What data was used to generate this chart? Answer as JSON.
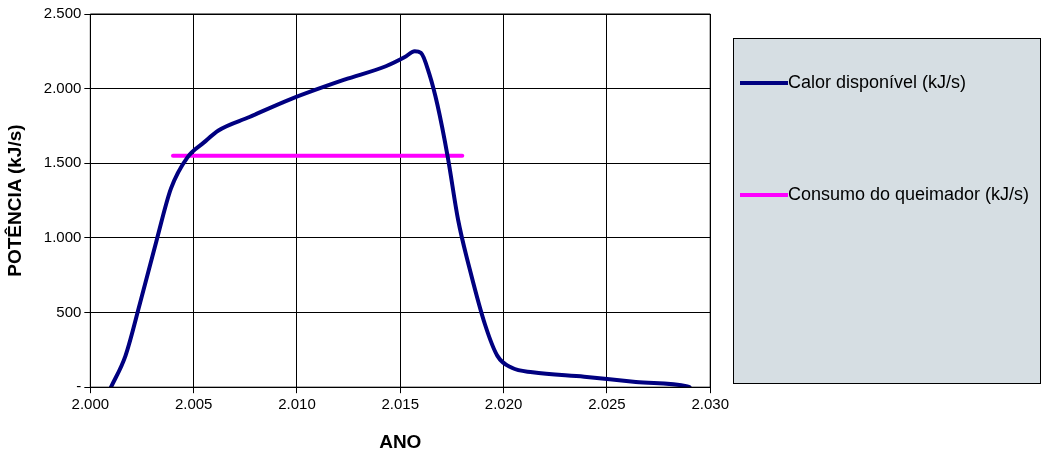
{
  "chart_data": {
    "type": "line",
    "xlabel": "ANO",
    "ylabel": "POTÊNCIA (kJ/s)",
    "legend": "right",
    "grid": true,
    "marker": "none",
    "xlim": [
      2000,
      2030
    ],
    "xticks": [
      {
        "value": 2000,
        "label": "2.000"
      },
      {
        "value": 2005,
        "label": "2.005"
      },
      {
        "value": 2010,
        "label": "2.010"
      },
      {
        "value": 2015,
        "label": "2.015"
      },
      {
        "value": 2020,
        "label": "2.020"
      },
      {
        "value": 2025,
        "label": "2.025"
      },
      {
        "value": 2030,
        "label": "2.030"
      }
    ],
    "ylim": [
      0,
      2500
    ],
    "yticks": [
      {
        "value": 0,
        "label": "-"
      },
      {
        "value": 500,
        "label": "500"
      },
      {
        "value": 1000,
        "label": "1.000"
      },
      {
        "value": 1500,
        "label": "1.500"
      },
      {
        "value": 2000,
        "label": "2.000"
      },
      {
        "value": 2500,
        "label": "2.500"
      }
    ],
    "series": [
      {
        "name": "Calor disponível (kJ/s)",
        "color": "#000080",
        "x": [
          2001,
          2001.7,
          2002.4,
          2003.2,
          2003.9,
          2004.7,
          2005.5,
          2006.2,
          2007.7,
          2009.7,
          2012.3,
          2014.3,
          2015.2,
          2015.7,
          2016,
          2016.4,
          2016.8,
          2017.3,
          2017.8,
          2018.4,
          2019.1,
          2019.7,
          2020.4,
          2021.4,
          2023.9,
          2026.4,
          2028.9,
          2029
        ],
        "values": [
          0,
          210,
          560,
          980,
          1330,
          1540,
          1640,
          1720,
          1810,
          1930,
          2060,
          2150,
          2210,
          2250,
          2240,
          2100,
          1890,
          1540,
          1120,
          770,
          420,
          210,
          130,
          100,
          70,
          35,
          5,
          0
        ]
      },
      {
        "name": "Consumo do queimador (kJ/s)",
        "color": "#ff00ff",
        "x": [
          2004,
          2018
        ],
        "values": [
          1550,
          1550
        ]
      }
    ]
  }
}
